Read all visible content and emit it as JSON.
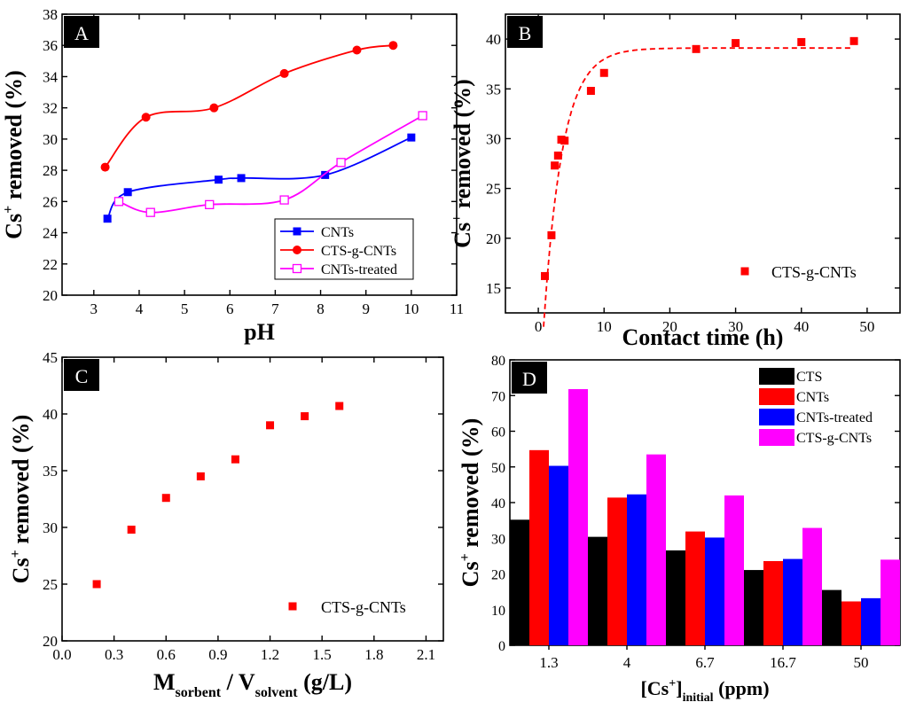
{
  "figure": "Four-panel figure of Cs+ removal (%) by sorbents",
  "chart_data": [
    {
      "panel": "A",
      "type": "line",
      "xlabel": "pH",
      "ylabel_main": "Cs",
      "ylabel_sup": "+",
      "ylabel_rest": " removed (%)",
      "xlim": [
        2.3,
        11
      ],
      "ylim": [
        20,
        38
      ],
      "xticks": [
        3,
        4,
        5,
        6,
        7,
        8,
        9,
        10,
        11
      ],
      "yticks": [
        20,
        22,
        24,
        26,
        28,
        30,
        32,
        34,
        36,
        38
      ],
      "legend_position": "bottom-right",
      "series": [
        {
          "name": "CNTs",
          "color": "#0000ff",
          "marker": "square-filled",
          "x": [
            3.3,
            3.75,
            5.75,
            6.25,
            8.1,
            10.0
          ],
          "y": [
            24.9,
            26.6,
            27.4,
            27.5,
            27.7,
            30.1
          ]
        },
        {
          "name": "CTS-g-CNTs",
          "color": "#ff0000",
          "marker": "circle-filled",
          "x": [
            3.25,
            4.15,
            5.65,
            7.2,
            8.8,
            9.6
          ],
          "y": [
            28.2,
            31.4,
            32.0,
            34.2,
            35.7,
            36.0
          ]
        },
        {
          "name": "CNTs-treated",
          "color": "#ff00ff",
          "marker": "square-open",
          "x": [
            3.55,
            4.25,
            5.55,
            7.2,
            8.45,
            10.25
          ],
          "y": [
            26.0,
            25.3,
            25.8,
            26.1,
            28.5,
            31.5
          ]
        }
      ]
    },
    {
      "panel": "B",
      "type": "scatter",
      "xlabel": "Contact time (h)",
      "ylabel_main": "Cs",
      "ylabel_sup": "+",
      "ylabel_rest": " removed (%)",
      "xlim": [
        -5,
        55
      ],
      "ylim": [
        12.5,
        42.5
      ],
      "xticks": [
        0,
        10,
        20,
        30,
        40,
        50
      ],
      "yticks": [
        15,
        20,
        25,
        30,
        35,
        40
      ],
      "legend_position": "bottom-right",
      "series": [
        {
          "name": "CTS-g-CNTs",
          "color": "#ff0000",
          "marker": "square-filled",
          "x": [
            1,
            2,
            2.5,
            3,
            3.5,
            4,
            8,
            10,
            24,
            30,
            40,
            48
          ],
          "y": [
            16.2,
            20.3,
            27.3,
            28.3,
            29.9,
            29.8,
            34.8,
            36.6,
            39.0,
            39.6,
            39.7,
            39.8
          ]
        }
      ],
      "fit": {
        "color": "#ff0000",
        "style": "dashed",
        "model": "y = 39.1 - 28*exp(-0.35*(t-0.8))",
        "t_range": [
          0.8,
          48
        ]
      }
    },
    {
      "panel": "C",
      "type": "scatter",
      "xlabel_main": "M",
      "xlabel_sub1": "sorbent",
      "xlabel_mid": " / V",
      "xlabel_sub2": "solvent",
      "xlabel_end": " (g/L)",
      "ylabel_main": "Cs",
      "ylabel_sup": "+",
      "ylabel_rest": " removed (%)",
      "xlim": [
        0,
        2.2
      ],
      "ylim": [
        20,
        45
      ],
      "xticks": [
        "0.0",
        "0.3",
        "0.6",
        "0.9",
        "1.2",
        "1.5",
        "1.8",
        "2.1"
      ],
      "yticks": [
        20,
        25,
        30,
        35,
        40,
        45
      ],
      "legend_position": "bottom-right",
      "series": [
        {
          "name": "CTS-g-CNTs",
          "color": "#ff0000",
          "marker": "square-filled",
          "x": [
            0.2,
            0.4,
            0.6,
            0.8,
            1.0,
            1.2,
            1.4,
            1.6
          ],
          "y": [
            25.0,
            29.8,
            32.6,
            34.5,
            36.0,
            39.0,
            39.8,
            40.7
          ]
        }
      ]
    },
    {
      "panel": "D",
      "type": "bar",
      "xlabel_main": "[Cs",
      "xlabel_sup": "+",
      "xlabel_mid": "]",
      "xlabel_sub": "initial",
      "xlabel_end": " (ppm)",
      "ylabel_main": "Cs",
      "ylabel_sup": "+",
      "ylabel_rest": " removed (%)",
      "ylim": [
        0,
        80
      ],
      "yticks": [
        0,
        10,
        20,
        30,
        40,
        50,
        60,
        70,
        80
      ],
      "categories": [
        "1.3",
        "4",
        "6.7",
        "16.7",
        "50"
      ],
      "legend_position": "top-right",
      "series": [
        {
          "name": "CTS",
          "color": "#000000",
          "values": [
            35.2,
            30.4,
            26.6,
            21.1,
            15.5
          ]
        },
        {
          "name": "CNTs",
          "color": "#ff0000",
          "values": [
            54.7,
            41.4,
            31.9,
            23.6,
            12.3
          ]
        },
        {
          "name": "CNTs-treated",
          "color": "#0000ff",
          "values": [
            50.3,
            42.3,
            30.2,
            24.2,
            13.2
          ]
        },
        {
          "name": "CTS-g-CNTs",
          "color": "#ff00ff",
          "values": [
            71.8,
            53.5,
            42.0,
            32.9,
            24.0
          ]
        }
      ]
    }
  ]
}
